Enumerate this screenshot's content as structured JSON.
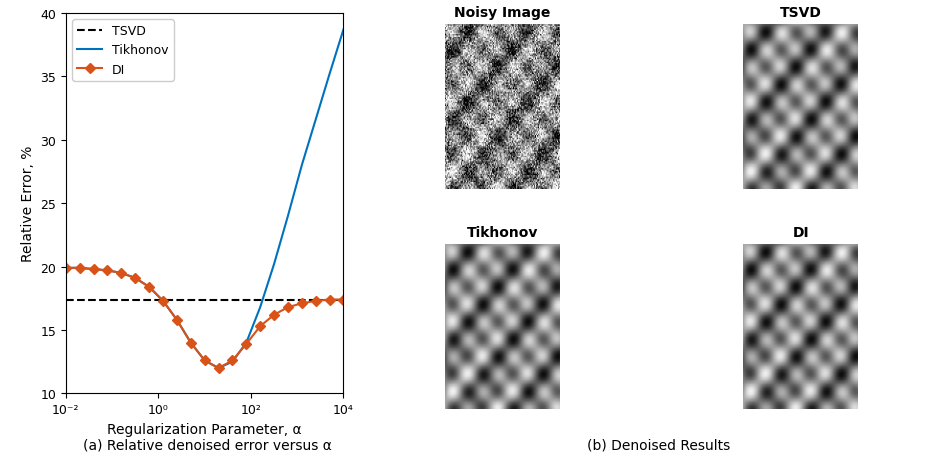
{
  "chart_data": {
    "type": "line",
    "caption": "(a) Relative denoised error versus α",
    "xlabel": "Regularization Parameter, α",
    "ylabel": "Relative Error, %",
    "log": "x",
    "xlim": [
      0.01,
      10000
    ],
    "ylim": [
      10,
      40
    ],
    "xticks": [
      {
        "value": 0.01,
        "label": "10⁻²"
      },
      {
        "value": 1,
        "label": "10⁰"
      },
      {
        "value": 100,
        "label": "10²"
      },
      {
        "value": 10000,
        "label": "10⁴"
      }
    ],
    "yticks": [
      10,
      15,
      20,
      25,
      30,
      35,
      40
    ],
    "grid": false,
    "legend": "upper left",
    "series": [
      {
        "name": "TSVD",
        "color": "#000000",
        "line_style": "dashed",
        "x": [
          0.01,
          10000
        ],
        "values": [
          17.4,
          17.4
        ]
      },
      {
        "name": "Tikhonov",
        "color": "#0072bd",
        "line_style": "solid",
        "x": [
          0.01,
          0.02,
          0.04,
          0.079,
          0.158,
          0.316,
          0.631,
          1.259,
          2.512,
          5.012,
          10,
          19.95,
          39.81,
          79.43,
          158.5,
          316.2,
          631,
          1259,
          2512,
          5012,
          10000
        ],
        "values": [
          19.9,
          19.9,
          19.8,
          19.7,
          19.5,
          19.1,
          18.4,
          17.3,
          15.8,
          14.0,
          12.6,
          12.0,
          12.5,
          14.0,
          16.8,
          20.2,
          24.0,
          28.0,
          31.6,
          35.2,
          38.7
        ]
      },
      {
        "name": "DI",
        "color": "#d95319",
        "line_style": "solid",
        "marker": "diamond",
        "x": [
          0.01,
          0.02,
          0.04,
          0.079,
          0.158,
          0.316,
          0.631,
          1.259,
          2.512,
          5.012,
          10,
          19.95,
          39.81,
          79.43,
          158.5,
          316.2,
          631,
          1259,
          2512,
          5012,
          10000
        ],
        "values": [
          19.9,
          19.9,
          19.8,
          19.7,
          19.5,
          19.1,
          18.4,
          17.3,
          15.8,
          14.0,
          12.6,
          12.0,
          12.6,
          13.9,
          15.3,
          16.2,
          16.8,
          17.1,
          17.3,
          17.4,
          17.4
        ]
      }
    ]
  },
  "images": {
    "caption": "(b) Denoised Results",
    "panels": [
      "Noisy Image",
      "TSVD",
      "Tikhonov",
      "DI"
    ]
  }
}
